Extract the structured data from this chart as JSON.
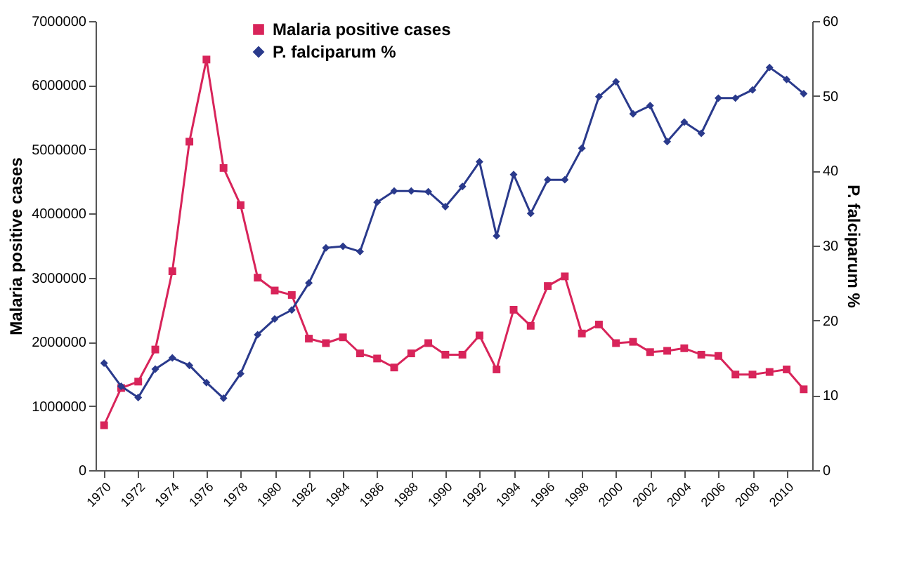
{
  "chart_data": {
    "type": "line",
    "ylabel": "Malaria positive cases",
    "y2label": "P. falciparum %",
    "x": [
      1970,
      1971,
      1972,
      1973,
      1974,
      1975,
      1976,
      1977,
      1978,
      1979,
      1980,
      1981,
      1982,
      1983,
      1984,
      1985,
      1986,
      1987,
      1988,
      1989,
      1990,
      1991,
      1992,
      1993,
      1994,
      1995,
      1996,
      1997,
      1998,
      1999,
      2000,
      2001,
      2002,
      2003,
      2004,
      2005,
      2006,
      2007,
      2008,
      2009,
      2010,
      2011
    ],
    "xlim": [
      1969.5,
      2011.5
    ],
    "xticks": [
      1970,
      1972,
      1974,
      1976,
      1978,
      1980,
      1982,
      1984,
      1986,
      1988,
      1990,
      1992,
      1994,
      1996,
      1998,
      2000,
      2002,
      2004,
      2006,
      2008,
      2010
    ],
    "ylim": [
      0,
      7000000
    ],
    "yticks": [
      0,
      1000000,
      2000000,
      3000000,
      4000000,
      5000000,
      6000000,
      7000000
    ],
    "y2lim": [
      0,
      60
    ],
    "y2ticks": [
      0,
      10,
      20,
      30,
      40,
      50,
      60
    ],
    "legend": "top",
    "grid": false,
    "series": [
      {
        "name": "Malaria positive cases",
        "color": "#d8245a",
        "marker": "square",
        "values": [
          700000,
          1280000,
          1380000,
          1880000,
          3100000,
          5120000,
          6400000,
          4710000,
          4130000,
          3000000,
          2800000,
          2730000,
          2050000,
          1980000,
          2070000,
          1820000,
          1740000,
          1600000,
          1820000,
          1980000,
          1800000,
          1800000,
          2100000,
          1570000,
          2500000,
          2250000,
          2870000,
          3020000,
          2130000,
          2270000,
          1980000,
          2000000,
          1840000,
          1860000,
          1900000,
          1800000,
          1780000,
          1490000,
          1490000,
          1530000,
          1570000,
          1260000
        ]
      },
      {
        "name": "P. falciparum %",
        "color": "#2a3a8c",
        "marker": "diamond",
        "axis": "y2",
        "values": [
          14.3,
          11.2,
          9.7,
          13.5,
          15.0,
          14.0,
          11.7,
          9.6,
          12.9,
          18.1,
          20.2,
          21.4,
          25.0,
          29.7,
          29.9,
          29.2,
          35.8,
          37.3,
          37.3,
          37.2,
          35.2,
          37.9,
          41.2,
          31.3,
          39.5,
          34.3,
          38.8,
          38.8,
          43.0,
          49.9,
          51.9,
          47.6,
          48.7,
          43.9,
          46.5,
          45.0,
          49.7,
          49.7,
          50.8,
          53.8,
          52.2,
          50.3
        ]
      }
    ]
  }
}
